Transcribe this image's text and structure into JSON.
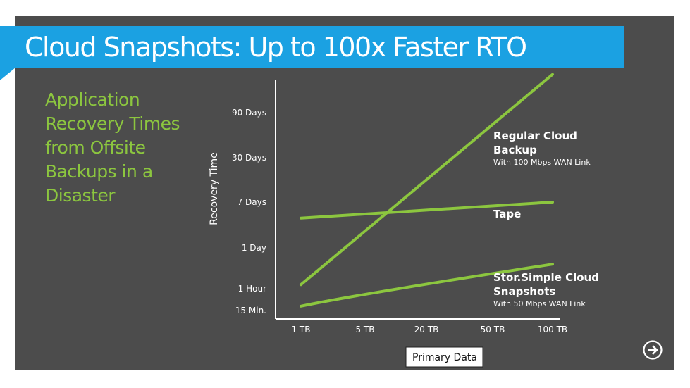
{
  "slide": {
    "title": "Cloud Snapshots: Up to 100x Faster RTO",
    "subtitle_lines": [
      "Application",
      "Recovery Times",
      "from Offsite",
      "Backups in a",
      "Disaster"
    ]
  },
  "colors": {
    "background": "#4c4c4c",
    "title_bar": "#1ba1e2",
    "series": "#8cc63f",
    "text": "#ffffff"
  },
  "chart_data": {
    "type": "line",
    "title": "",
    "xlabel": "Primary Data",
    "ylabel": "Recovery Time",
    "x_categories": [
      "1 TB",
      "5 TB",
      "20 TB",
      "50 TB",
      "100 TB"
    ],
    "y_categories": [
      "15 Min.",
      "1 Hour",
      "1 Day",
      "7 Days",
      "30 Days",
      "90 Days"
    ],
    "series": [
      {
        "name": "Regular Cloud Backup",
        "label_lines": [
          "Regular Cloud",
          "Backup"
        ],
        "sublabel": "With 100 Mbps WAN Link",
        "points": [
          [
            0.0,
            1.1
          ],
          [
            4.0,
            5.85
          ]
        ],
        "curve": "line"
      },
      {
        "name": "Tape",
        "label_lines": [
          "Tape"
        ],
        "sublabel": "",
        "points": [
          [
            0.0,
            2.65
          ],
          [
            4.0,
            3.0
          ]
        ],
        "curve": "line"
      },
      {
        "name": "StorSimple Cloud Snapshots",
        "label_lines": [
          "Stor.Simple Cloud",
          "Snapshots"
        ],
        "sublabel": "With 50 Mbps WAN Link",
        "points": [
          [
            0.0,
            0.2
          ],
          [
            0.9,
            0.75
          ],
          [
            4.0,
            1.6
          ]
        ],
        "curve": "smooth"
      }
    ]
  },
  "navigation": {
    "next_icon": "arrow-right-circle-icon"
  }
}
